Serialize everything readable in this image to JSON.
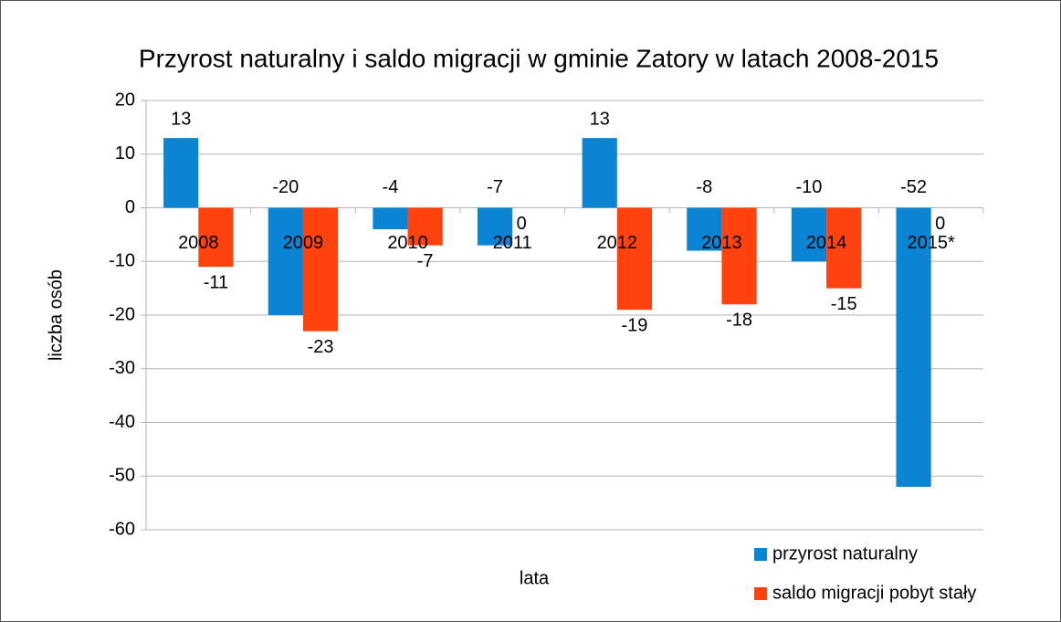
{
  "chart_data": {
    "type": "bar",
    "title": "Przyrost naturalny i saldo migracji w gminie Zatory w latach 2008-2015",
    "x_label": "lata",
    "y_label": "liczba osób",
    "categories": [
      "2008",
      "2009",
      "2010",
      "2011",
      "2012",
      "2013",
      "2014",
      "2015*"
    ],
    "series": [
      {
        "name": "przyrost naturalny",
        "color": "#0b84d3",
        "values": [
          13,
          -20,
          -4,
          -7,
          13,
          -8,
          -10,
          -52
        ]
      },
      {
        "name": "saldo migracji pobyt stały",
        "color": "#ff420e",
        "values": [
          -11,
          -23,
          -7,
          0,
          -19,
          -18,
          -15,
          0
        ]
      }
    ],
    "ylim": [
      -60,
      20
    ],
    "yticks": [
      -60,
      -50,
      -40,
      -30,
      -20,
      -10,
      0,
      10,
      20
    ],
    "grid": true,
    "legend": "bottom-right"
  }
}
